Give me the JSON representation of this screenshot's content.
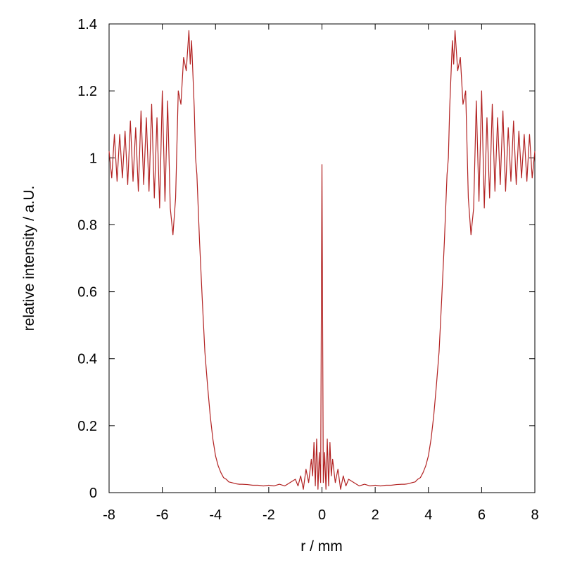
{
  "chart_data": {
    "type": "line",
    "title": "",
    "xlabel": "r / mm",
    "ylabel": "relative intensity / a.U.",
    "xlim": [
      -8,
      8
    ],
    "ylim": [
      0,
      1.4
    ],
    "xticks": [
      -8,
      -6,
      -4,
      -2,
      0,
      2,
      4,
      6,
      8
    ],
    "xtick_labels": [
      "-8",
      "-6",
      "-4",
      "-2",
      "0",
      "2",
      "4",
      "6",
      "8"
    ],
    "yticks": [
      0,
      0.2,
      0.4,
      0.6,
      0.8,
      1.0,
      1.2,
      1.4
    ],
    "ytick_labels": [
      "0",
      "0.2",
      "0.4",
      "0.6",
      "0.8",
      "1",
      "1.2",
      "1.4"
    ],
    "grid": false,
    "legend": "none",
    "series": [
      {
        "color": "#b22222",
        "x": [
          -8.0,
          -7.9,
          -7.8,
          -7.7,
          -7.6,
          -7.5,
          -7.4,
          -7.3,
          -7.2,
          -7.1,
          -7.0,
          -6.9,
          -6.8,
          -6.7,
          -6.6,
          -6.5,
          -6.4,
          -6.3,
          -6.2,
          -6.1,
          -6.0,
          -5.9,
          -5.8,
          -5.7,
          -5.6,
          -5.5,
          -5.4,
          -5.3,
          -5.2,
          -5.1,
          -5.0,
          -4.95,
          -4.9,
          -4.85,
          -4.8,
          -4.75,
          -4.7,
          -4.6,
          -4.5,
          -4.4,
          -4.3,
          -4.2,
          -4.1,
          -4.0,
          -3.9,
          -3.8,
          -3.7,
          -3.6,
          -3.5,
          -3.4,
          -3.3,
          -3.2,
          -3.1,
          -3.0,
          -2.8,
          -2.6,
          -2.4,
          -2.2,
          -2.0,
          -1.8,
          -1.6,
          -1.4,
          -1.2,
          -1.0,
          -0.9,
          -0.8,
          -0.7,
          -0.6,
          -0.5,
          -0.4,
          -0.35,
          -0.3,
          -0.25,
          -0.2,
          -0.15,
          -0.1,
          -0.05,
          0.0,
          0.05,
          0.1,
          0.15,
          0.2,
          0.25,
          0.3,
          0.35,
          0.4,
          0.5,
          0.6,
          0.7,
          0.8,
          0.9,
          1.0,
          1.2,
          1.4,
          1.6,
          1.8,
          2.0,
          2.2,
          2.4,
          2.6,
          2.8,
          3.0,
          3.1,
          3.2,
          3.3,
          3.4,
          3.5,
          3.6,
          3.7,
          3.8,
          3.9,
          4.0,
          4.1,
          4.2,
          4.3,
          4.4,
          4.5,
          4.6,
          4.7,
          4.75,
          4.8,
          4.85,
          4.9,
          4.95,
          5.0,
          5.1,
          5.2,
          5.3,
          5.4,
          5.5,
          5.6,
          5.7,
          5.8,
          5.9,
          6.0,
          6.1,
          6.2,
          6.3,
          6.4,
          6.5,
          6.6,
          6.7,
          6.8,
          6.9,
          7.0,
          7.1,
          7.2,
          7.3,
          7.4,
          7.5,
          7.6,
          7.7,
          7.8,
          7.9,
          8.0
        ],
        "y": [
          1.02,
          0.94,
          1.07,
          0.93,
          1.07,
          0.94,
          1.08,
          0.92,
          1.11,
          0.93,
          1.09,
          0.9,
          1.14,
          0.92,
          1.12,
          0.9,
          1.16,
          0.88,
          1.12,
          0.85,
          1.2,
          0.87,
          1.17,
          0.85,
          0.77,
          0.88,
          1.2,
          1.16,
          1.3,
          1.26,
          1.38,
          1.28,
          1.35,
          1.25,
          1.15,
          1.0,
          0.95,
          0.75,
          0.58,
          0.42,
          0.32,
          0.23,
          0.16,
          0.11,
          0.08,
          0.06,
          0.045,
          0.04,
          0.032,
          0.03,
          0.028,
          0.026,
          0.025,
          0.025,
          0.024,
          0.022,
          0.022,
          0.02,
          0.022,
          0.02,
          0.025,
          0.02,
          0.03,
          0.04,
          0.02,
          0.05,
          0.01,
          0.07,
          0.03,
          0.1,
          0.05,
          0.15,
          0.02,
          0.16,
          0.01,
          0.12,
          0.03,
          0.98,
          0.03,
          0.12,
          0.01,
          0.16,
          0.02,
          0.15,
          0.05,
          0.1,
          0.03,
          0.07,
          0.01,
          0.05,
          0.02,
          0.04,
          0.03,
          0.02,
          0.025,
          0.02,
          0.022,
          0.02,
          0.022,
          0.022,
          0.024,
          0.025,
          0.025,
          0.026,
          0.028,
          0.03,
          0.032,
          0.04,
          0.045,
          0.06,
          0.08,
          0.11,
          0.16,
          0.23,
          0.32,
          0.42,
          0.58,
          0.75,
          0.95,
          1.0,
          1.15,
          1.25,
          1.35,
          1.28,
          1.38,
          1.26,
          1.3,
          1.16,
          1.2,
          0.88,
          0.77,
          0.85,
          1.17,
          0.87,
          1.2,
          0.85,
          1.12,
          0.88,
          1.16,
          0.9,
          1.12,
          0.92,
          1.14,
          0.9,
          1.09,
          0.93,
          1.11,
          0.92,
          1.08,
          0.94,
          1.07,
          0.93,
          1.07,
          0.94,
          1.02
        ]
      }
    ]
  }
}
